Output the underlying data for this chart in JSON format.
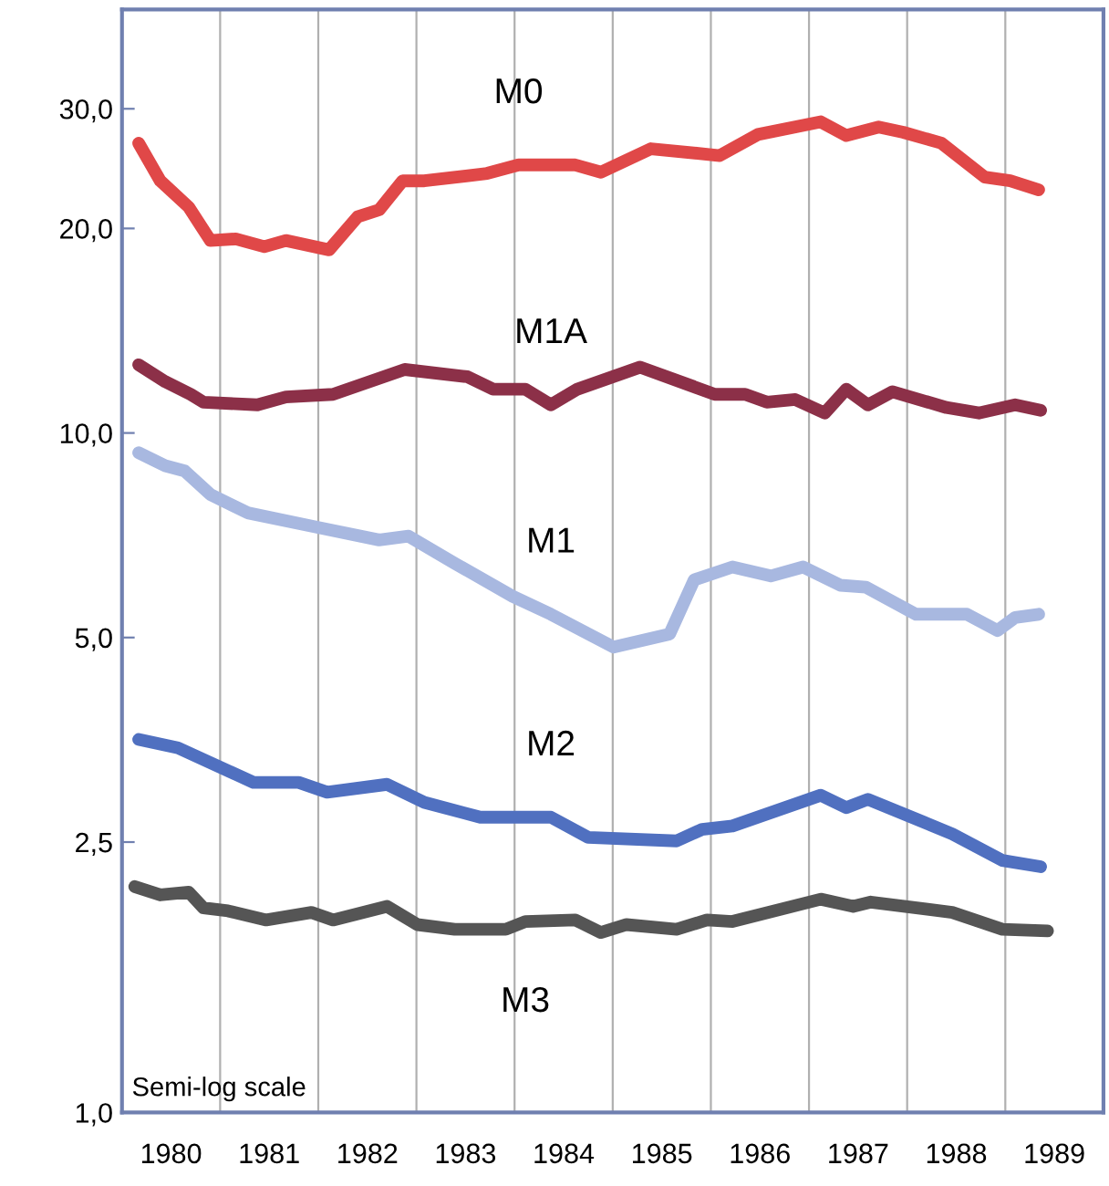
{
  "chart_data": {
    "type": "line",
    "log": "y",
    "ylim": [
      1.0,
      42
    ],
    "yticks": [
      {
        "value": 1,
        "label": "1,0"
      },
      {
        "value": 2.5,
        "label": "2,5"
      },
      {
        "value": 5,
        "label": "5,0"
      },
      {
        "value": 10,
        "label": "10,0"
      },
      {
        "value": 20,
        "label": "20,0"
      },
      {
        "value": 30,
        "label": "30,0"
      }
    ],
    "xlim": [
      1980,
      1990
    ],
    "xticks": [
      {
        "value": 1981,
        "label": null
      },
      {
        "value": 1982,
        "label": null
      },
      {
        "value": 1983,
        "label": null
      },
      {
        "value": 1984,
        "label": null
      },
      {
        "value": 1985,
        "label": null
      },
      {
        "value": 1986,
        "label": null
      },
      {
        "value": 1987,
        "label": null
      },
      {
        "value": 1988,
        "label": null
      },
      {
        "value": 1989,
        "label": null
      },
      {
        "value": 1980.5,
        "label": "1980"
      },
      {
        "value": 1981.5,
        "label": "1981"
      },
      {
        "value": 1982.5,
        "label": "1982"
      },
      {
        "value": 1983.5,
        "label": "1983"
      },
      {
        "value": 1984.5,
        "label": "1984"
      },
      {
        "value": 1985.5,
        "label": "1985"
      },
      {
        "value": 1986.5,
        "label": "1986"
      },
      {
        "value": 1987.5,
        "label": "1987"
      },
      {
        "value": 1988.5,
        "label": "1988"
      },
      {
        "value": 1989.5,
        "label": "1989"
      }
    ],
    "grid": "x",
    "marker": "none",
    "line_style": "solid",
    "legend": false,
    "annotations": [
      "Semi-log scale"
    ],
    "series": [
      {
        "name": "M0",
        "color": "#e04848",
        "x": [
          1980.17,
          1980.39,
          1980.68,
          1980.9,
          1981.16,
          1981.45,
          1981.67,
          1982.11,
          1982.4,
          1982.62,
          1982.86,
          1983.08,
          1983.72,
          1984.04,
          1984.62,
          1984.88,
          1985.39,
          1986.09,
          1986.48,
          1987.12,
          1987.38,
          1987.71,
          1987.96,
          1988.35,
          1988.79,
          1989.05,
          1989.34
        ],
        "values": [
          26.7,
          23.5,
          21.5,
          19.2,
          19.3,
          18.8,
          19.2,
          18.6,
          20.8,
          21.3,
          23.5,
          23.5,
          24.1,
          24.8,
          24.8,
          24.2,
          26.2,
          25.6,
          27.5,
          28.7,
          27.4,
          28.2,
          27.7,
          26.7,
          23.8,
          23.5,
          22.8
        ]
      },
      {
        "name": "M1A",
        "color": "#8c3048",
        "x": [
          1980.17,
          1980.44,
          1980.7,
          1980.83,
          1981.38,
          1981.67,
          1982.15,
          1982.88,
          1983.52,
          1983.78,
          1984.11,
          1984.37,
          1984.64,
          1985.28,
          1986.04,
          1986.35,
          1986.57,
          1986.86,
          1987.16,
          1987.38,
          1987.6,
          1987.85,
          1988.4,
          1988.73,
          1989.1,
          1989.36
        ],
        "values": [
          12.6,
          11.9,
          11.4,
          11.1,
          11.0,
          11.3,
          11.4,
          12.4,
          12.1,
          11.6,
          11.6,
          11.0,
          11.6,
          12.5,
          11.4,
          11.4,
          11.1,
          11.2,
          10.7,
          11.6,
          11.0,
          11.5,
          10.9,
          10.7,
          11.0,
          10.8
        ]
      },
      {
        "name": "M1",
        "color": "#a8b8e0",
        "x": [
          1980.17,
          1980.44,
          1980.64,
          1980.9,
          1981.28,
          1981.98,
          1982.62,
          1982.92,
          1983.39,
          1983.98,
          1984.37,
          1985.01,
          1985.58,
          1985.83,
          1986.22,
          1986.61,
          1986.94,
          1987.32,
          1987.58,
          1988.09,
          1988.61,
          1988.92,
          1989.1,
          1989.34
        ],
        "values": [
          9.35,
          8.95,
          8.79,
          8.12,
          7.63,
          7.27,
          6.96,
          7.05,
          6.43,
          5.75,
          5.41,
          4.84,
          5.06,
          6.08,
          6.35,
          6.16,
          6.35,
          5.97,
          5.93,
          5.41,
          5.41,
          5.12,
          5.35,
          5.41
        ]
      },
      {
        "name": "M2",
        "color": "#5070c0",
        "x": [
          1980.17,
          1980.57,
          1981.34,
          1981.8,
          1982.09,
          1982.7,
          1983.08,
          1983.65,
          1984.37,
          1984.75,
          1985.65,
          1985.91,
          1986.22,
          1987.12,
          1987.38,
          1987.6,
          1988.46,
          1988.97,
          1989.36
        ],
        "values": [
          3.54,
          3.44,
          3.06,
          3.06,
          2.96,
          3.04,
          2.86,
          2.72,
          2.72,
          2.54,
          2.51,
          2.61,
          2.64,
          2.93,
          2.81,
          2.89,
          2.57,
          2.35,
          2.3
        ]
      },
      {
        "name": "M3",
        "color": "#555555",
        "x": [
          1980.13,
          1980.39,
          1980.68,
          1980.83,
          1981.08,
          1981.47,
          1981.93,
          1982.15,
          1982.7,
          1983.01,
          1983.39,
          1983.91,
          1984.11,
          1984.62,
          1984.88,
          1985.14,
          1985.65,
          1985.96,
          1986.22,
          1987.12,
          1987.45,
          1987.63,
          1988.46,
          1988.97,
          1989.43
        ],
        "values": [
          2.15,
          2.09,
          2.11,
          2.0,
          1.98,
          1.92,
          1.97,
          1.92,
          2.01,
          1.89,
          1.86,
          1.86,
          1.91,
          1.92,
          1.84,
          1.89,
          1.86,
          1.92,
          1.91,
          2.06,
          2.01,
          2.04,
          1.97,
          1.86,
          1.85
        ]
      }
    ]
  }
}
